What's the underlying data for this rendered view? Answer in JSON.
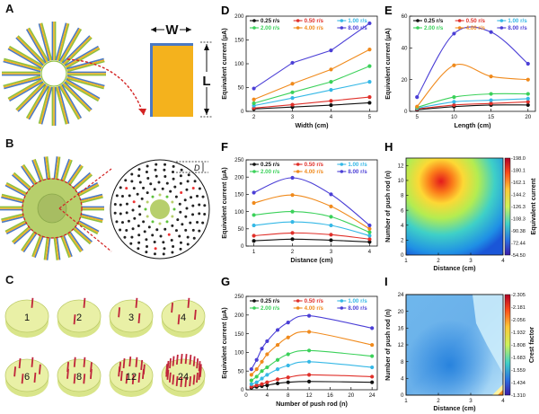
{
  "panels": {
    "A": {
      "label": "A",
      "W": "W",
      "L": "L"
    },
    "B": {
      "label": "B",
      "D": "D"
    },
    "C": {
      "label": "C",
      "rods": [
        "1",
        "2",
        "3",
        "4",
        "6",
        "8",
        "12",
        "24"
      ]
    }
  },
  "legend_labels": [
    "0.25 r/s",
    "0.50 r/s",
    "1.00 r/s",
    "2.00 r/s",
    "4.00 r/s",
    "8.00 r/s"
  ],
  "series_colors": [
    "#111111",
    "#e0302a",
    "#35b8e6",
    "#3bd15a",
    "#f08a1c",
    "#4b3fd6"
  ],
  "chart_data": [
    {
      "panel": "D",
      "type": "line",
      "x": [
        2,
        3,
        4,
        5
      ],
      "xlabel": "Width (cm)",
      "ylabel": "Equivalent current (μA)",
      "xlim": [
        1.8,
        5.2
      ],
      "ylim": [
        0,
        200
      ],
      "xticks": [
        2,
        3,
        4,
        5
      ],
      "yticks": [
        0,
        50,
        100,
        150,
        200
      ],
      "series": [
        {
          "name": "0.25 r/s",
          "values": [
            5,
            9,
            13,
            18
          ]
        },
        {
          "name": "0.50 r/s",
          "values": [
            7,
            14,
            22,
            30
          ]
        },
        {
          "name": "1.00 r/s",
          "values": [
            12,
            28,
            45,
            62
          ]
        },
        {
          "name": "2.00 r/s",
          "values": [
            17,
            40,
            62,
            95
          ]
        },
        {
          "name": "4.00 r/s",
          "values": [
            25,
            58,
            88,
            130
          ]
        },
        {
          "name": "8.00 r/s",
          "values": [
            48,
            102,
            128,
            185
          ]
        }
      ]
    },
    {
      "panel": "E",
      "type": "line",
      "x": [
        5,
        10,
        15,
        20
      ],
      "xlabel": "Length (cm)",
      "ylabel": "Equivalent current (μA)",
      "xlim": [
        4,
        21
      ],
      "ylim": [
        0,
        60
      ],
      "xticks": [
        5,
        10,
        15,
        20
      ],
      "yticks": [
        0,
        20,
        40,
        60
      ],
      "series": [
        {
          "name": "0.25 r/s",
          "values": [
            1,
            3,
            4,
            4
          ]
        },
        {
          "name": "0.50 r/s",
          "values": [
            1.5,
            4,
            5,
            6
          ]
        },
        {
          "name": "1.00 r/s",
          "values": [
            2,
            6,
            7,
            8
          ]
        },
        {
          "name": "2.00 r/s",
          "values": [
            2.5,
            9,
            11,
            11
          ]
        },
        {
          "name": "4.00 r/s",
          "values": [
            3,
            29,
            22,
            20
          ]
        },
        {
          "name": "8.00 r/s",
          "values": [
            9,
            49,
            50,
            30
          ]
        }
      ]
    },
    {
      "panel": "F",
      "type": "line",
      "x": [
        1,
        2,
        3,
        4
      ],
      "xlabel": "Distance (cm)",
      "ylabel": "Equivalent current (μA)",
      "xlim": [
        0.8,
        4.2
      ],
      "ylim": [
        0,
        250
      ],
      "xticks": [
        1,
        2,
        3,
        4
      ],
      "yticks": [
        0,
        50,
        100,
        150,
        200,
        250
      ],
      "series": [
        {
          "name": "0.25 r/s",
          "values": [
            15,
            20,
            17,
            12
          ]
        },
        {
          "name": "0.50 r/s",
          "values": [
            30,
            38,
            33,
            20
          ]
        },
        {
          "name": "1.00 r/s",
          "values": [
            60,
            70,
            60,
            30
          ]
        },
        {
          "name": "2.00 r/s",
          "values": [
            90,
            100,
            85,
            40
          ]
        },
        {
          "name": "4.00 r/s",
          "values": [
            125,
            148,
            115,
            50
          ]
        },
        {
          "name": "8.00 r/s",
          "values": [
            155,
            198,
            150,
            60
          ]
        }
      ]
    },
    {
      "panel": "G",
      "type": "line",
      "x": [
        1,
        2,
        3,
        4,
        6,
        8,
        12,
        24
      ],
      "xlabel": "Number of push rod (n)",
      "ylabel": "Equivalent current (μA)",
      "xlim": [
        0,
        25
      ],
      "ylim": [
        0,
        250
      ],
      "xticks": [
        0,
        4,
        8,
        12,
        16,
        20,
        24
      ],
      "yticks": [
        0,
        50,
        100,
        150,
        200,
        250
      ],
      "series": [
        {
          "name": "0.25 r/s",
          "values": [
            5,
            8,
            10,
            12,
            17,
            20,
            22,
            20
          ]
        },
        {
          "name": "0.50 r/s",
          "values": [
            8,
            12,
            15,
            20,
            28,
            33,
            40,
            35
          ]
        },
        {
          "name": "1.00 r/s",
          "values": [
            15,
            20,
            30,
            40,
            55,
            65,
            75,
            60
          ]
        },
        {
          "name": "2.00 r/s",
          "values": [
            25,
            35,
            50,
            60,
            80,
            95,
            105,
            90
          ]
        },
        {
          "name": "4.00 r/s",
          "values": [
            40,
            55,
            75,
            95,
            120,
            140,
            155,
            120
          ]
        },
        {
          "name": "8.00 r/s",
          "values": [
            55,
            80,
            110,
            130,
            160,
            180,
            198,
            165
          ]
        }
      ]
    },
    {
      "panel": "H",
      "type": "heatmap",
      "xlabel": "Distance (cm)",
      "ylabel": "Number of push rod (n)",
      "colorbar_label": "Equivalent current",
      "xticks": [
        1,
        2,
        3,
        4
      ],
      "yticks": [
        0,
        2,
        4,
        6,
        8,
        10,
        12
      ],
      "colorbar_ticks": [
        "198.0",
        "180.1",
        "162.1",
        "144.2",
        "126.3",
        "108.3",
        "90.38",
        "72.44",
        "54.50"
      ]
    },
    {
      "panel": "I",
      "type": "heatmap",
      "xlabel": "Distance (cm)",
      "ylabel": "Number of push rod (n)",
      "colorbar_label": "Crest factor",
      "xticks": [
        1,
        2,
        3,
        4
      ],
      "yticks": [
        0,
        4,
        8,
        12,
        16,
        20,
        24
      ],
      "colorbar_ticks": [
        "2.305",
        "2.181",
        "2.056",
        "1.932",
        "1.808",
        "1.683",
        "1.559",
        "1.434",
        "1.310"
      ]
    }
  ]
}
